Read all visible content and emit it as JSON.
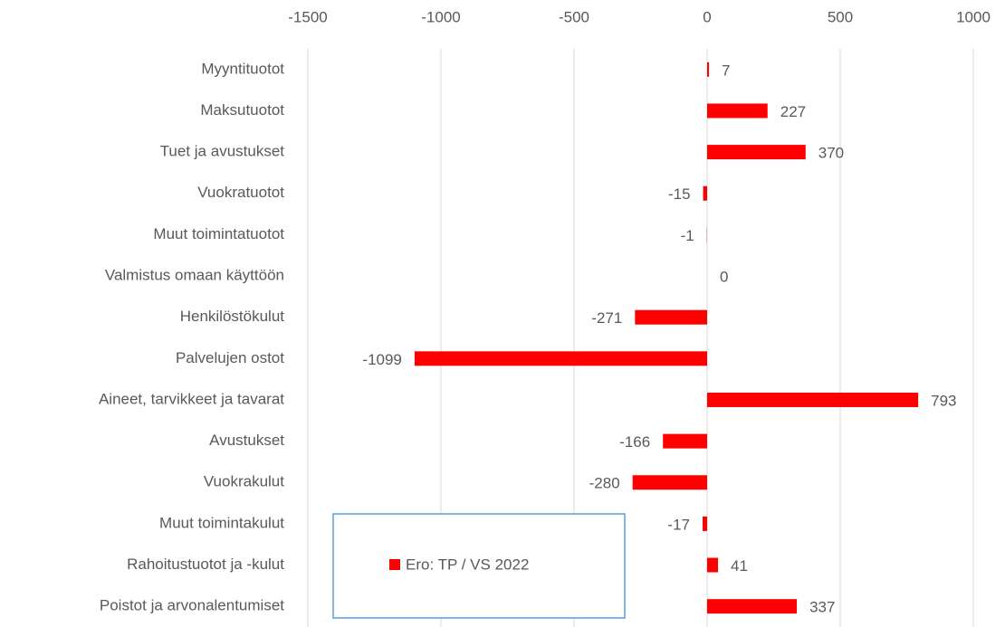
{
  "chart_data": {
    "type": "bar",
    "orientation": "horizontal",
    "categories": [
      "Myyntituotot",
      "Maksutuotot",
      "Tuet ja avustukset",
      "Vuokratuotot",
      "Muut toimintatuotot",
      "Valmistus omaan käyttöön",
      "Henkilöstökulut",
      "Palvelujen ostot",
      "Aineet, tarvikkeet ja tavarat",
      "Avustukset",
      "Vuokrakulut",
      "Muut toimintakulut",
      "Rahoitustuotot ja -kulut",
      "Poistot ja arvonalentumiset"
    ],
    "series": [
      {
        "name": "Ero: TP / VS 2022",
        "color": "#ff0000",
        "values": [
          7,
          227,
          370,
          -15,
          -1,
          0,
          -271,
          -1099,
          793,
          -166,
          -280,
          -17,
          41,
          337
        ]
      }
    ],
    "xlim": [
      -1500,
      1000
    ],
    "xticks": [
      -1500,
      -1000,
      -500,
      0,
      500,
      1000
    ],
    "grid": true,
    "legend": "bottom-left"
  }
}
